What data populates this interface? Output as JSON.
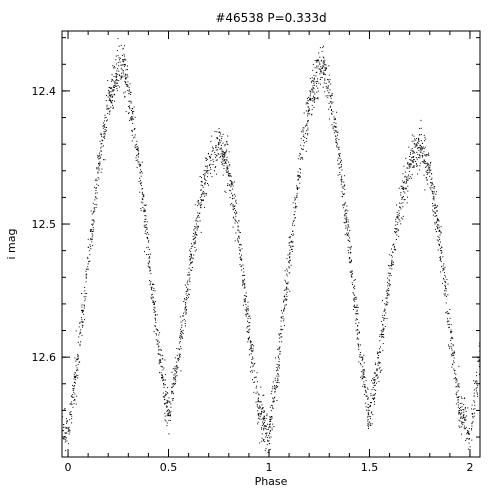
{
  "chart_data": {
    "type": "scatter",
    "title": "#46538 P=0.333d",
    "xlabel": "Phase",
    "ylabel": "i mag",
    "xlim": [
      -0.03,
      2.05
    ],
    "ylim": [
      12.675,
      12.355
    ],
    "y_inverted": true,
    "x_major_ticks": [
      0,
      0.5,
      1,
      1.5,
      2
    ],
    "x_tick_labels": [
      "0",
      "0.5",
      "1",
      "1.5",
      "2"
    ],
    "y_major_ticks": [
      12.4,
      12.5,
      12.6
    ],
    "y_tick_labels": [
      "12.4",
      "12.5",
      "12.6"
    ],
    "grid": false,
    "marker_color": "#000000",
    "series": [
      {
        "light_curve": {
          "period_days": 0.333,
          "phase": [
            0.0,
            0.05,
            0.1,
            0.15,
            0.2,
            0.25,
            0.27,
            0.3,
            0.35,
            0.4,
            0.45,
            0.5,
            0.55,
            0.6,
            0.65,
            0.7,
            0.75,
            0.8,
            0.85,
            0.9,
            0.95,
            1.0
          ],
          "i_mag": [
            12.66,
            12.6,
            12.53,
            12.46,
            12.41,
            12.385,
            12.38,
            12.4,
            12.45,
            12.52,
            12.59,
            12.645,
            12.6,
            12.54,
            12.49,
            12.455,
            12.44,
            12.46,
            12.51,
            12.58,
            12.64,
            12.66
          ]
        }
      }
    ]
  }
}
